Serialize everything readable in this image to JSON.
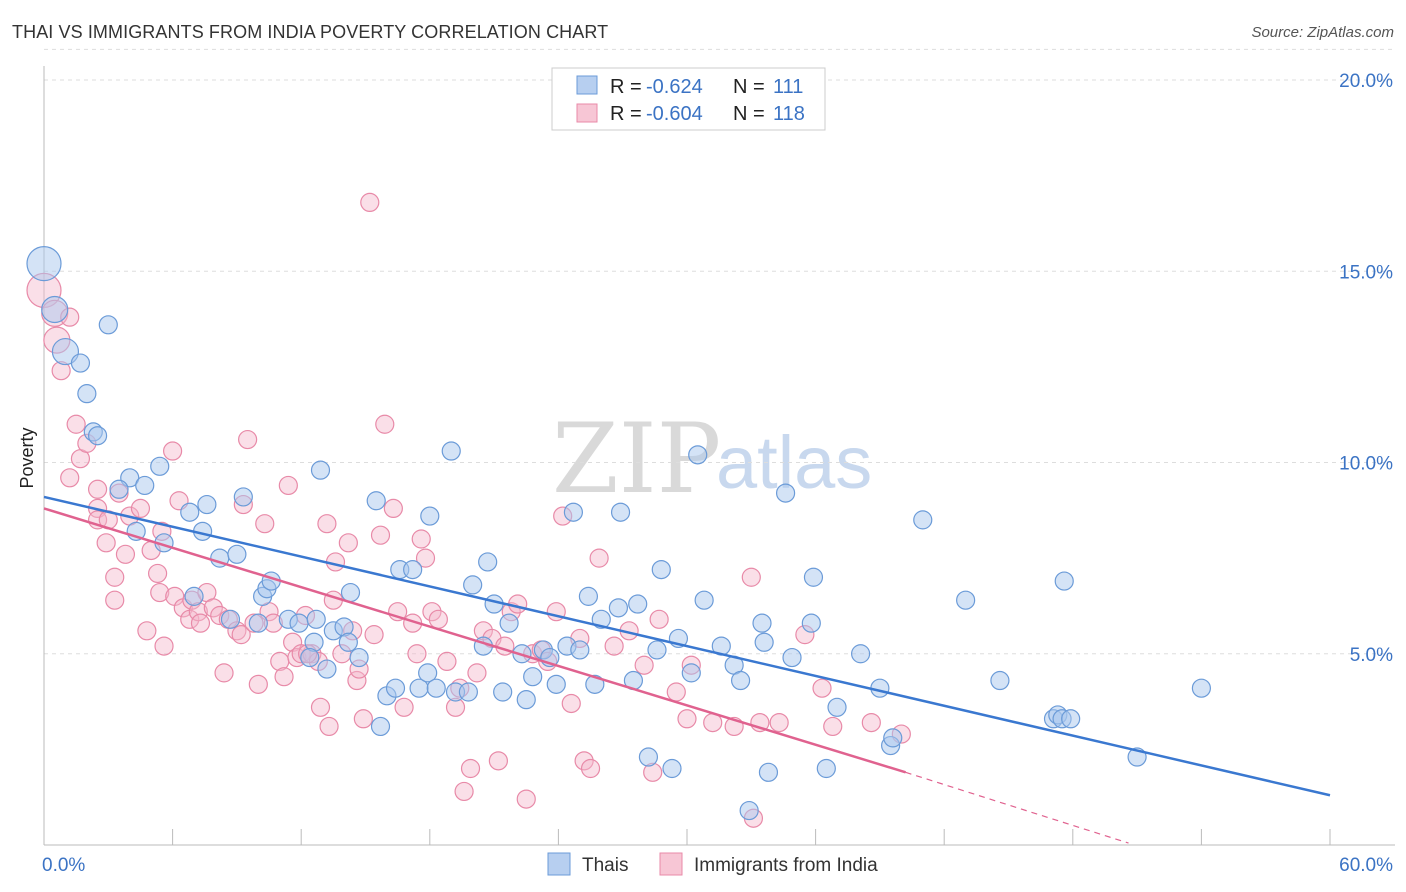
{
  "title": "THAI VS IMMIGRANTS FROM INDIA POVERTY CORRELATION CHART",
  "source": "Source: ZipAtlas.com",
  "watermark": {
    "zip": "ZIP",
    "atlas": "atlas"
  },
  "legend_top": {
    "r_label": "R =",
    "n_label": "N =",
    "rows": [
      {
        "r": "-0.624",
        "n": "111"
      },
      {
        "r": "-0.604",
        "n": "118"
      }
    ]
  },
  "legend_bottom": [
    "Thais",
    "Immigrants from India"
  ],
  "colors": {
    "thais_fill": "#a9c7ee",
    "thais_stroke": "#6b9bd8",
    "thais_line": "#3a78d0",
    "india_fill": "#f5b8cb",
    "india_stroke": "#e88aa8",
    "india_line": "#e0628f",
    "tick": "#3b73c4",
    "grid": "#dddddd"
  },
  "chart_data": {
    "type": "scatter",
    "title": "THAI VS IMMIGRANTS FROM INDIA POVERTY CORRELATION CHART",
    "xlabel": "",
    "ylabel": "Poverty",
    "xlim": [
      0,
      60
    ],
    "ylim": [
      0,
      20.8
    ],
    "x_tick_labels": [
      "0.0%",
      "60.0%"
    ],
    "y_ticks": [
      5,
      10,
      15,
      20
    ],
    "y_tick_labels": [
      "5.0%",
      "10.0%",
      "15.0%",
      "20.0%"
    ],
    "grid": true,
    "legend": "top-center",
    "series": [
      {
        "name": "Thais",
        "r": -0.624,
        "n": 111,
        "trend": {
          "x": [
            0,
            60
          ],
          "y": [
            9.1,
            1.3
          ]
        },
        "points": [
          [
            0,
            15.2,
            3
          ],
          [
            0.5,
            14.0,
            2
          ],
          [
            1.0,
            12.9,
            2
          ],
          [
            1.7,
            12.6,
            1
          ],
          [
            3.0,
            13.6,
            1
          ],
          [
            2.0,
            11.8,
            1
          ],
          [
            2.3,
            10.8,
            1
          ],
          [
            2.5,
            10.7,
            1
          ],
          [
            4.0,
            9.6,
            1
          ],
          [
            3.5,
            9.3,
            1
          ],
          [
            5.4,
            9.9,
            1
          ],
          [
            4.7,
            9.4,
            1
          ],
          [
            4.3,
            8.2,
            1
          ],
          [
            5.6,
            7.9,
            1
          ],
          [
            6.8,
            8.7,
            1
          ],
          [
            7.4,
            8.2,
            1
          ],
          [
            7.6,
            8.9,
            1
          ],
          [
            9.3,
            9.1,
            1
          ],
          [
            8.2,
            7.5,
            1
          ],
          [
            9.0,
            7.6,
            1
          ],
          [
            10.2,
            6.5,
            1
          ],
          [
            10.4,
            6.7,
            1
          ],
          [
            10.6,
            6.9,
            1
          ],
          [
            7.0,
            6.5,
            1
          ],
          [
            8.7,
            5.9,
            1
          ],
          [
            10.0,
            5.8,
            1
          ],
          [
            11.4,
            5.9,
            1
          ],
          [
            11.9,
            5.8,
            1
          ],
          [
            12.6,
            5.3,
            1
          ],
          [
            12.4,
            4.9,
            1
          ],
          [
            12.7,
            5.9,
            1
          ],
          [
            13.2,
            4.6,
            1
          ],
          [
            13.5,
            5.6,
            1
          ],
          [
            14.0,
            5.7,
            1
          ],
          [
            14.2,
            5.3,
            1
          ],
          [
            14.7,
            4.9,
            1
          ],
          [
            14.3,
            6.6,
            1
          ],
          [
            12.9,
            9.8,
            1
          ],
          [
            15.5,
            9.0,
            1
          ],
          [
            15.7,
            3.1,
            1
          ],
          [
            16.0,
            3.9,
            1
          ],
          [
            16.4,
            4.1,
            1
          ],
          [
            16.6,
            7.2,
            1
          ],
          [
            17.2,
            7.2,
            1
          ],
          [
            17.5,
            4.1,
            1
          ],
          [
            17.9,
            4.5,
            1
          ],
          [
            18.3,
            4.1,
            1
          ],
          [
            18.0,
            8.6,
            1
          ],
          [
            19.2,
            4.0,
            1
          ],
          [
            19.8,
            4.0,
            1
          ],
          [
            20.0,
            6.8,
            1
          ],
          [
            20.5,
            5.2,
            1
          ],
          [
            20.7,
            7.4,
            1
          ],
          [
            21.0,
            6.3,
            1
          ],
          [
            19.0,
            10.3,
            1
          ],
          [
            21.4,
            4.0,
            1
          ],
          [
            21.7,
            5.8,
            1
          ],
          [
            22.3,
            5.0,
            1
          ],
          [
            22.5,
            3.8,
            1
          ],
          [
            22.8,
            4.4,
            1
          ],
          [
            23.3,
            5.1,
            1
          ],
          [
            23.6,
            4.9,
            1
          ],
          [
            23.9,
            4.2,
            1
          ],
          [
            24.4,
            5.2,
            1
          ],
          [
            24.7,
            8.7,
            1
          ],
          [
            25.0,
            5.1,
            1
          ],
          [
            25.4,
            6.5,
            1
          ],
          [
            25.7,
            4.2,
            1
          ],
          [
            26.0,
            5.9,
            1
          ],
          [
            26.8,
            6.2,
            1
          ],
          [
            26.9,
            8.7,
            1
          ],
          [
            27.5,
            4.3,
            1
          ],
          [
            27.7,
            6.3,
            1
          ],
          [
            28.2,
            2.3,
            1
          ],
          [
            28.6,
            5.1,
            1
          ],
          [
            28.8,
            7.2,
            1
          ],
          [
            29.3,
            2.0,
            1
          ],
          [
            29.6,
            5.4,
            1
          ],
          [
            30.2,
            4.5,
            1
          ],
          [
            30.5,
            10.2,
            1
          ],
          [
            30.8,
            6.4,
            1
          ],
          [
            31.6,
            5.2,
            1
          ],
          [
            32.2,
            4.7,
            1
          ],
          [
            32.5,
            4.3,
            1
          ],
          [
            32.9,
            0.9,
            1
          ],
          [
            33.5,
            5.8,
            1
          ],
          [
            33.6,
            5.3,
            1
          ],
          [
            33.8,
            1.9,
            1
          ],
          [
            34.6,
            9.2,
            1
          ],
          [
            34.9,
            4.9,
            1
          ],
          [
            35.8,
            5.8,
            1
          ],
          [
            35.9,
            7.0,
            1
          ],
          [
            36.5,
            2.0,
            1
          ],
          [
            37.0,
            3.6,
            1
          ],
          [
            38.1,
            5.0,
            1
          ],
          [
            39.0,
            4.1,
            1
          ],
          [
            39.5,
            2.6,
            1
          ],
          [
            39.6,
            2.8,
            1
          ],
          [
            41.0,
            8.5,
            1
          ],
          [
            43.0,
            6.4,
            1
          ],
          [
            44.6,
            4.3,
            1
          ],
          [
            47.1,
            3.3,
            1
          ],
          [
            47.3,
            3.4,
            1
          ],
          [
            47.5,
            3.3,
            1
          ],
          [
            47.9,
            3.3,
            1
          ],
          [
            47.6,
            6.9,
            1
          ],
          [
            51.0,
            2.3,
            1
          ],
          [
            54.0,
            4.1,
            1
          ]
        ]
      },
      {
        "name": "Immigrants from India",
        "r": -0.604,
        "n": 118,
        "trend": {
          "x": [
            0,
            40.2
          ],
          "y": [
            8.8,
            1.9
          ]
        },
        "trend_extrapolated": {
          "x": [
            40.2,
            50.6
          ],
          "y": [
            1.9,
            0.05
          ]
        },
        "points": [
          [
            0,
            14.5,
            3
          ],
          [
            0.5,
            13.9,
            2
          ],
          [
            1.2,
            13.8,
            1
          ],
          [
            0.6,
            13.2,
            2
          ],
          [
            0.8,
            12.4,
            1
          ],
          [
            1.5,
            11.0,
            1
          ],
          [
            1.7,
            10.1,
            1
          ],
          [
            2.0,
            10.5,
            1
          ],
          [
            1.2,
            9.6,
            1
          ],
          [
            2.5,
            9.3,
            1
          ],
          [
            2.5,
            8.8,
            1
          ],
          [
            3.5,
            9.2,
            1
          ],
          [
            2.5,
            8.5,
            1
          ],
          [
            3.0,
            8.5,
            1
          ],
          [
            4.0,
            8.6,
            1
          ],
          [
            4.5,
            8.8,
            1
          ],
          [
            2.9,
            7.9,
            1
          ],
          [
            3.3,
            7.0,
            1
          ],
          [
            3.8,
            7.6,
            1
          ],
          [
            5.0,
            7.7,
            1
          ],
          [
            5.5,
            8.2,
            1
          ],
          [
            6.0,
            10.3,
            1
          ],
          [
            6.3,
            9.0,
            1
          ],
          [
            5.3,
            7.1,
            1
          ],
          [
            3.3,
            6.4,
            1
          ],
          [
            4.8,
            5.6,
            1
          ],
          [
            5.4,
            6.6,
            1
          ],
          [
            5.6,
            5.2,
            1
          ],
          [
            6.1,
            6.5,
            1
          ],
          [
            6.5,
            6.2,
            1
          ],
          [
            6.8,
            5.9,
            1
          ],
          [
            6.9,
            6.4,
            1
          ],
          [
            7.2,
            6.1,
            1
          ],
          [
            7.3,
            5.8,
            1
          ],
          [
            7.6,
            6.6,
            1
          ],
          [
            7.9,
            6.2,
            1
          ],
          [
            8.2,
            6.0,
            1
          ],
          [
            8.4,
            4.5,
            1
          ],
          [
            8.6,
            5.9,
            1
          ],
          [
            9.0,
            5.6,
            1
          ],
          [
            9.2,
            5.5,
            1
          ],
          [
            9.3,
            8.9,
            1
          ],
          [
            9.5,
            10.6,
            1
          ],
          [
            9.8,
            5.8,
            1
          ],
          [
            10.0,
            4.2,
            1
          ],
          [
            10.3,
            8.4,
            1
          ],
          [
            10.5,
            6.1,
            1
          ],
          [
            10.7,
            5.8,
            1
          ],
          [
            11.0,
            4.8,
            1
          ],
          [
            11.2,
            4.4,
            1
          ],
          [
            11.4,
            9.4,
            1
          ],
          [
            11.6,
            5.3,
            1
          ],
          [
            11.8,
            4.9,
            1
          ],
          [
            12.0,
            5.0,
            1
          ],
          [
            12.2,
            6.0,
            1
          ],
          [
            12.5,
            5.0,
            1
          ],
          [
            12.8,
            4.8,
            1
          ],
          [
            12.3,
            5.0,
            1
          ],
          [
            12.9,
            3.6,
            1
          ],
          [
            13.2,
            8.4,
            1
          ],
          [
            13.3,
            3.1,
            1
          ],
          [
            13.5,
            6.4,
            1
          ],
          [
            13.6,
            7.4,
            1
          ],
          [
            13.9,
            5.0,
            1
          ],
          [
            14.2,
            7.9,
            1
          ],
          [
            14.4,
            5.6,
            1
          ],
          [
            14.6,
            4.3,
            1
          ],
          [
            14.7,
            4.6,
            1
          ],
          [
            14.9,
            3.3,
            1
          ],
          [
            15.2,
            16.8,
            1
          ],
          [
            15.4,
            5.5,
            1
          ],
          [
            15.7,
            8.1,
            1
          ],
          [
            15.9,
            11.0,
            1
          ],
          [
            16.3,
            8.8,
            1
          ],
          [
            16.5,
            6.1,
            1
          ],
          [
            16.8,
            3.6,
            1
          ],
          [
            17.2,
            5.8,
            1
          ],
          [
            17.4,
            5.0,
            1
          ],
          [
            17.6,
            8.0,
            1
          ],
          [
            17.8,
            7.5,
            1
          ],
          [
            18.1,
            6.1,
            1
          ],
          [
            18.4,
            5.9,
            1
          ],
          [
            18.8,
            4.8,
            1
          ],
          [
            19.2,
            3.6,
            1
          ],
          [
            19.4,
            4.1,
            1
          ],
          [
            19.6,
            1.4,
            1
          ],
          [
            19.9,
            2.0,
            1
          ],
          [
            20.2,
            4.5,
            1
          ],
          [
            20.5,
            5.6,
            1
          ],
          [
            20.9,
            5.4,
            1
          ],
          [
            21.2,
            2.2,
            1
          ],
          [
            21.5,
            5.2,
            1
          ],
          [
            21.8,
            6.1,
            1
          ],
          [
            22.1,
            6.3,
            1
          ],
          [
            22.5,
            1.2,
            1
          ],
          [
            22.8,
            5.0,
            1
          ],
          [
            23.2,
            5.1,
            1
          ],
          [
            23.5,
            4.8,
            1
          ],
          [
            23.9,
            6.1,
            1
          ],
          [
            24.2,
            8.6,
            1
          ],
          [
            24.6,
            3.7,
            1
          ],
          [
            25.0,
            5.4,
            1
          ],
          [
            25.2,
            2.2,
            1
          ],
          [
            25.5,
            2.0,
            1
          ],
          [
            25.9,
            7.5,
            1
          ],
          [
            26.6,
            5.2,
            1
          ],
          [
            27.3,
            5.6,
            1
          ],
          [
            28.0,
            4.7,
            1
          ],
          [
            28.4,
            1.9,
            1
          ],
          [
            28.7,
            5.9,
            1
          ],
          [
            29.5,
            4.0,
            1
          ],
          [
            30.0,
            3.3,
            1
          ],
          [
            30.2,
            4.7,
            1
          ],
          [
            31.2,
            3.2,
            1
          ],
          [
            32.2,
            3.1,
            1
          ],
          [
            33.0,
            7.0,
            1
          ],
          [
            33.1,
            0.7,
            1
          ],
          [
            33.4,
            3.2,
            1
          ],
          [
            34.3,
            3.2,
            1
          ],
          [
            35.5,
            5.5,
            1
          ],
          [
            36.3,
            4.1,
            1
          ],
          [
            36.8,
            3.1,
            1
          ],
          [
            38.6,
            3.2,
            1
          ],
          [
            40.0,
            2.9,
            1
          ]
        ]
      }
    ]
  }
}
